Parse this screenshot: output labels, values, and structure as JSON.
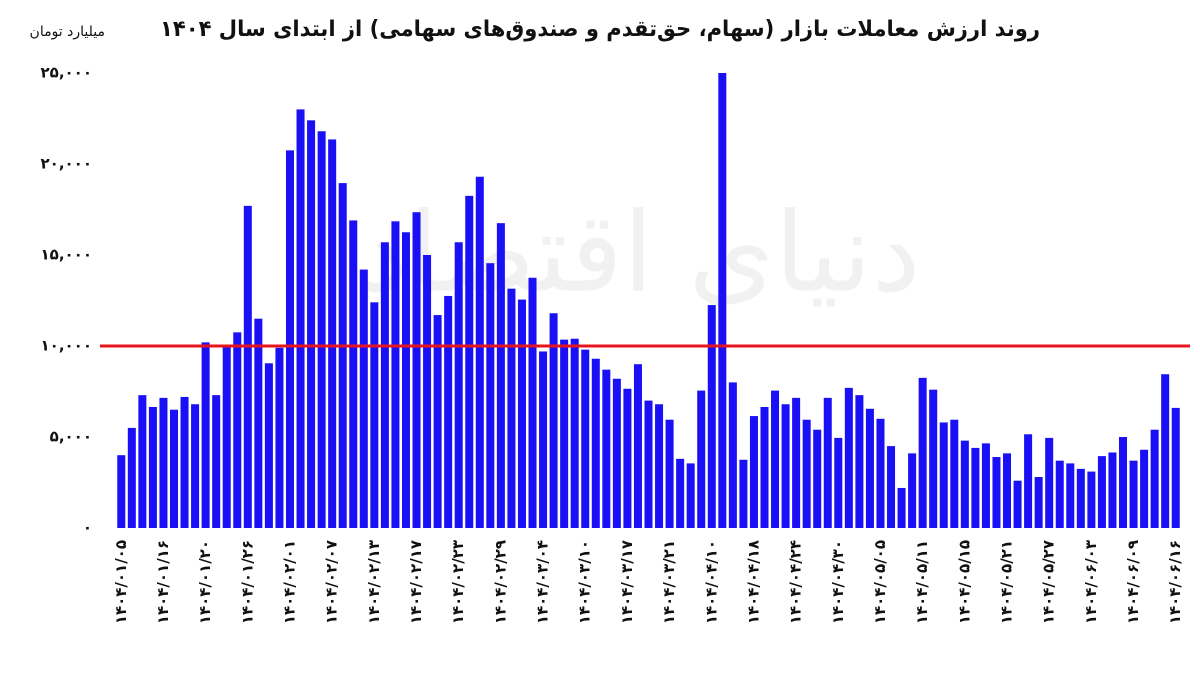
{
  "chart_data": {
    "type": "bar",
    "title": "روند ارزش معاملات بازار (سهام، حق‌تقدم و صندوق‌های سهامی) از ابتدای سال ۱۴۰۴",
    "y_label": "میلیارد تومان",
    "watermark": "دنیای اقتصاد",
    "color": "#1a10f5",
    "ylim": [
      0,
      25000
    ],
    "yticks": [
      {
        "value": 0,
        "label": "۰"
      },
      {
        "value": 5000,
        "label": "۵,۰۰۰"
      },
      {
        "value": 10000,
        "label": "۱۰,۰۰۰"
      },
      {
        "value": 15000,
        "label": "۱۵,۰۰۰"
      },
      {
        "value": 20000,
        "label": "۲۰,۰۰۰"
      },
      {
        "value": 25000,
        "label": "۲۵,۰۰۰"
      }
    ],
    "reference_line": {
      "value": 10000,
      "color": "#e8141c"
    },
    "categories": [
      "۱۴۰۴/۰۱/۰۵",
      null,
      null,
      null,
      "۱۴۰۴/۰۱/۱۶",
      null,
      null,
      null,
      "۱۴۰۴/۰۱/۲۰",
      null,
      null,
      null,
      "۱۴۰۴/۰۱/۲۶",
      null,
      null,
      null,
      "۱۴۰۴/۰۲/۰۱",
      null,
      null,
      null,
      "۱۴۰۴/۰۲/۰۷",
      null,
      null,
      null,
      "۱۴۰۴/۰۲/۱۳",
      null,
      null,
      null,
      "۱۴۰۴/۰۲/۱۷",
      null,
      null,
      null,
      "۱۴۰۴/۰۲/۲۳",
      null,
      null,
      null,
      "۱۴۰۴/۰۲/۲۹",
      null,
      null,
      null,
      "۱۴۰۴/۰۳/۰۴",
      null,
      null,
      null,
      "۱۴۰۴/۰۳/۱۰",
      null,
      null,
      null,
      "۱۴۰۴/۰۳/۱۷",
      null,
      null,
      null,
      "۱۴۰۴/۰۳/۲۱",
      null,
      null,
      null,
      "۱۴۰۴/۰۴/۱۰",
      null,
      null,
      null,
      "۱۴۰۴/۰۴/۱۸",
      null,
      null,
      null,
      "۱۴۰۴/۰۴/۲۴",
      null,
      null,
      null,
      "۱۴۰۴/۰۴/۳۰",
      null,
      null,
      null,
      "۱۴۰۴/۰۵/۰۵",
      null,
      null,
      null,
      "۱۴۰۴/۰۵/۱۱",
      null,
      null,
      null,
      "۱۴۰۴/۰۵/۱۵",
      null,
      null,
      null,
      "۱۴۰۴/۰۵/۲۱",
      null,
      null,
      null,
      "۱۴۰۴/۰۵/۲۷",
      null,
      null,
      null,
      "۱۴۰۴/۰۶/۰۳",
      null,
      null,
      null,
      "۱۴۰۴/۰۶/۰۹",
      null,
      null,
      null,
      "۱۴۰۴/۰۶/۱۶"
    ],
    "values": [
      4000,
      5500,
      7300,
      6650,
      7150,
      6500,
      7200,
      6800,
      10200,
      7300,
      10050,
      10750,
      17700,
      11500,
      9050,
      9900,
      20750,
      23000,
      22400,
      21800,
      21350,
      18950,
      16900,
      14200,
      12400,
      15700,
      16850,
      16250,
      17350,
      15000,
      11700,
      12750,
      15700,
      18250,
      19300,
      14550,
      16750,
      13150,
      12550,
      13750,
      9700,
      11800,
      10350,
      10400,
      9800,
      9300,
      8700,
      8200,
      7650,
      9000,
      7000,
      6800,
      5950,
      3800,
      3550,
      7550,
      12250,
      25000,
      8000,
      3750,
      6150,
      6650,
      7550,
      6800,
      7150,
      5950,
      5400,
      7150,
      4950,
      7700,
      7300,
      6550,
      6000,
      4500,
      2200,
      4100,
      8250,
      7600,
      5800,
      5950,
      4800,
      4400,
      4650,
      3900,
      4100,
      2600,
      5150,
      2800,
      4950,
      3700,
      3550,
      3250,
      3100,
      3950,
      4150,
      5000,
      3700,
      4300,
      5400,
      8450,
      6600
    ]
  }
}
